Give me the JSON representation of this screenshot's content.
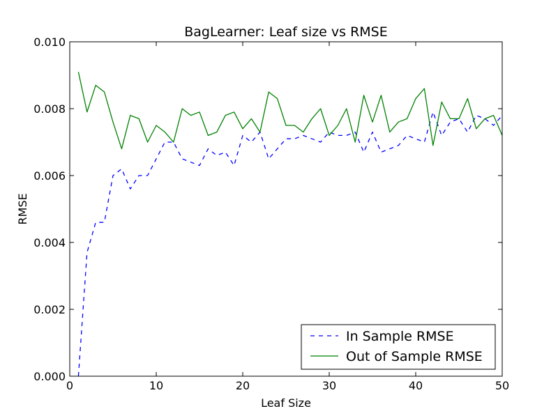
{
  "chart_data": {
    "type": "line",
    "title": "BagLearner: Leaf size vs RMSE",
    "xlabel": "Leaf Size",
    "ylabel": "RMSE",
    "xlim": [
      0,
      50
    ],
    "ylim": [
      0,
      0.01
    ],
    "x_ticks": [
      "0",
      "10",
      "20",
      "30",
      "40",
      "50"
    ],
    "y_ticks": [
      "0.000",
      "0.002",
      "0.004",
      "0.006",
      "0.008",
      "0.010"
    ],
    "grid": false,
    "legend_position": "lower right",
    "x": [
      1,
      2,
      3,
      4,
      5,
      6,
      7,
      8,
      9,
      10,
      11,
      12,
      13,
      14,
      15,
      16,
      17,
      18,
      19,
      20,
      21,
      22,
      23,
      24,
      25,
      26,
      27,
      28,
      29,
      30,
      31,
      32,
      33,
      34,
      35,
      36,
      37,
      38,
      39,
      40,
      41,
      42,
      43,
      44,
      45,
      46,
      47,
      48,
      49,
      50
    ],
    "series": [
      {
        "name": "In Sample RMSE",
        "color": "#0000ff",
        "style": "dashed",
        "values": [
          0.0,
          0.0037,
          0.0046,
          0.0046,
          0.006,
          0.0062,
          0.0056,
          0.006,
          0.006,
          0.0065,
          0.007,
          0.007,
          0.0065,
          0.0064,
          0.0063,
          0.0068,
          0.0066,
          0.0067,
          0.0063,
          0.0072,
          0.007,
          0.0073,
          0.0065,
          0.0068,
          0.0071,
          0.0071,
          0.0072,
          0.0071,
          0.007,
          0.0073,
          0.0072,
          0.0072,
          0.0073,
          0.0067,
          0.0073,
          0.0067,
          0.0068,
          0.0069,
          0.0072,
          0.0071,
          0.007,
          0.0079,
          0.0072,
          0.0076,
          0.0077,
          0.0073,
          0.0078,
          0.0077,
          0.0075,
          0.0078
        ]
      },
      {
        "name": "Out of Sample RMSE",
        "color": "#008000",
        "style": "solid",
        "values": [
          0.0091,
          0.0079,
          0.0087,
          0.0085,
          0.0076,
          0.0068,
          0.0078,
          0.0077,
          0.007,
          0.0075,
          0.0073,
          0.007,
          0.008,
          0.0078,
          0.0079,
          0.0072,
          0.0073,
          0.0078,
          0.0079,
          0.0074,
          0.0077,
          0.0073,
          0.0085,
          0.0083,
          0.0075,
          0.0075,
          0.0073,
          0.0077,
          0.008,
          0.0072,
          0.0075,
          0.008,
          0.007,
          0.0084,
          0.0076,
          0.0084,
          0.0073,
          0.0076,
          0.0077,
          0.0083,
          0.0086,
          0.0069,
          0.0082,
          0.0077,
          0.0077,
          0.0083,
          0.0074,
          0.0077,
          0.0078,
          0.0072
        ]
      }
    ]
  }
}
